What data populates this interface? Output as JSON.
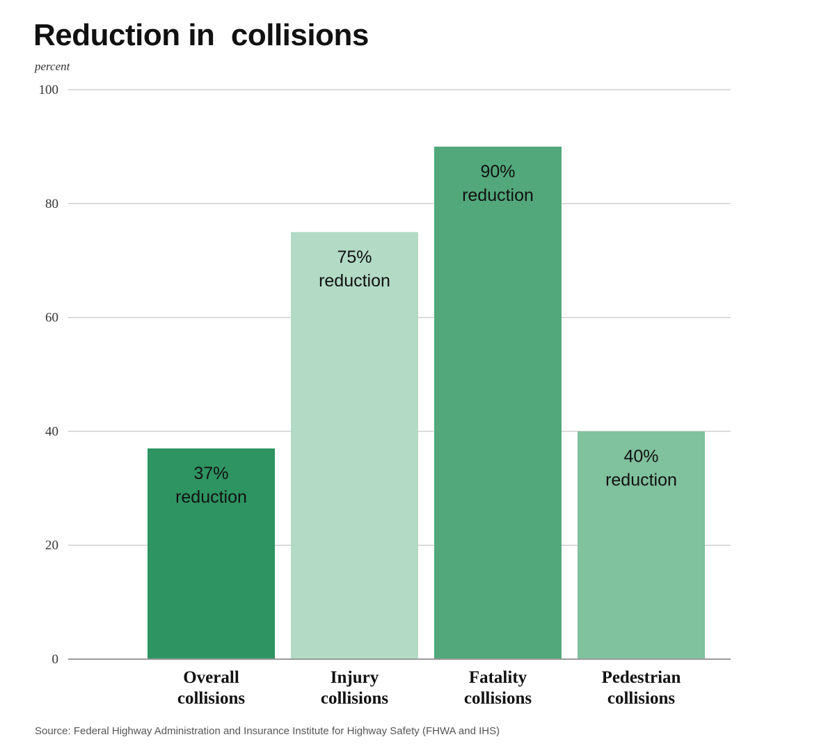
{
  "chart_data": {
    "type": "bar",
    "title": "Reduction in  collisions",
    "ylabel": "percent",
    "ylim": [
      0,
      100
    ],
    "yticks": [
      0,
      20,
      40,
      60,
      80,
      100
    ],
    "grid": true,
    "categories": [
      [
        "Overall",
        "collisions"
      ],
      [
        "Injury",
        "collisions"
      ],
      [
        "Fatality",
        "collisions"
      ],
      [
        "Pedestrian",
        "collisions"
      ]
    ],
    "values": [
      37,
      75,
      90,
      40
    ],
    "data_labels": [
      [
        "37%",
        "reduction"
      ],
      [
        "75%",
        "reduction"
      ],
      [
        "90%",
        "reduction"
      ],
      [
        "40%",
        "reduction"
      ]
    ],
    "colors": [
      "#2e9462",
      "#b2dac5",
      "#52a87b",
      "#80c19e"
    ]
  },
  "source": "Source: Federal Highway Administration and Insurance Institute for Highway Safety (FHWA and IHS)"
}
